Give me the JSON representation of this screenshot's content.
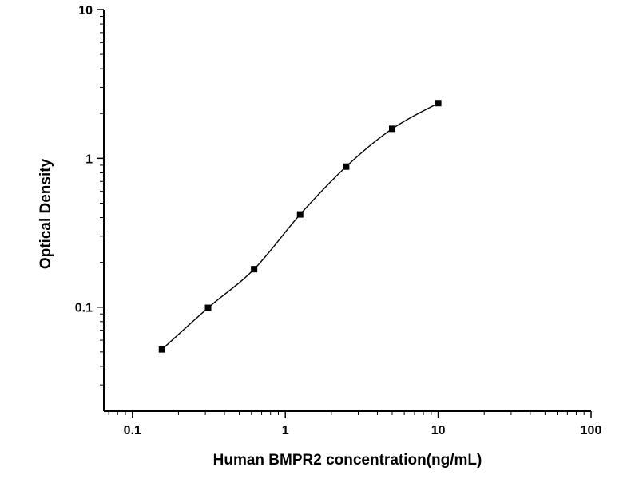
{
  "chart_data": {
    "type": "scatter",
    "title": "",
    "xlabel": "Human BMPR2 concentration(ng/mL)",
    "ylabel": "Optical Density",
    "x_scale": "log",
    "y_scale": "log",
    "xlim": [
      0.065,
      100
    ],
    "ylim": [
      0.02,
      10
    ],
    "x_ticks": [
      0.1,
      1,
      10,
      100
    ],
    "y_ticks": [
      0.1,
      1,
      10
    ],
    "grid": false,
    "legend": "none",
    "axis_color": "#000000",
    "series": [
      {
        "marker": "filled-square",
        "line": "smooth",
        "color": "#000000",
        "x": [
          0.156,
          0.3125,
          0.625,
          1.25,
          2.5,
          5,
          10
        ],
        "y": [
          0.052,
          0.099,
          0.18,
          0.42,
          0.88,
          1.58,
          2.35
        ]
      }
    ]
  }
}
